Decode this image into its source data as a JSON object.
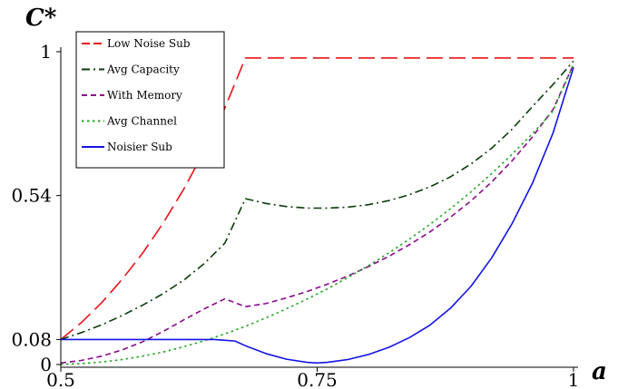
{
  "chart_data": {
    "type": "line",
    "xlabel": "a",
    "ylabel": "C*",
    "xlim": [
      0.5,
      1
    ],
    "ylim": [
      0,
      1
    ],
    "xticks": [
      {
        "value": 0.5,
        "label": "0.5"
      },
      {
        "value": 0.75,
        "label": "0.75"
      },
      {
        "value": 1,
        "label": "1"
      }
    ],
    "yticks": [
      {
        "value": 0,
        "label": "0"
      },
      {
        "value": 0.08,
        "label": "0.08"
      },
      {
        "value": 0.54,
        "label": "0.54"
      },
      {
        "value": 1,
        "label": "1"
      }
    ],
    "legend_position": "top-left",
    "series": [
      {
        "name": "Low Noise Sub",
        "color": "#e8141a",
        "dash": "long-dash",
        "x": [
          0.5,
          0.52,
          0.54,
          0.56,
          0.58,
          0.6,
          0.62,
          0.64,
          0.66,
          0.68,
          0.7,
          0.75,
          0.8,
          0.85,
          0.9,
          0.95,
          1.0
        ],
        "y": [
          0.08,
          0.134,
          0.198,
          0.273,
          0.357,
          0.453,
          0.561,
          0.683,
          0.82,
          0.98,
          0.98,
          0.98,
          0.98,
          0.98,
          0.98,
          0.98,
          0.98
        ]
      },
      {
        "name": "Avg Capacity",
        "color": "#0b3d0b",
        "dash": "dash-dot",
        "x": [
          0.5,
          0.52,
          0.54,
          0.56,
          0.58,
          0.6,
          0.62,
          0.64,
          0.66,
          0.68,
          0.7,
          0.72,
          0.74,
          0.76,
          0.78,
          0.8,
          0.82,
          0.84,
          0.86,
          0.88,
          0.9,
          0.92,
          0.94,
          0.96,
          0.98,
          1.0
        ],
        "y": [
          0.08,
          0.102,
          0.127,
          0.157,
          0.19,
          0.227,
          0.27,
          0.323,
          0.388,
          0.53,
          0.515,
          0.505,
          0.5,
          0.5,
          0.503,
          0.511,
          0.524,
          0.543,
          0.568,
          0.6,
          0.641,
          0.691,
          0.752,
          0.825,
          0.895,
          0.97
        ]
      },
      {
        "name": "With Memory",
        "color": "#8b0a8b",
        "dash": "short-dash",
        "x": [
          0.5,
          0.52,
          0.54,
          0.56,
          0.58,
          0.6,
          0.62,
          0.64,
          0.66,
          0.68,
          0.7,
          0.72,
          0.74,
          0.76,
          0.78,
          0.8,
          0.82,
          0.84,
          0.86,
          0.88,
          0.9,
          0.92,
          0.94,
          0.96,
          0.98,
          1.0
        ],
        "y": [
          0.005,
          0.013,
          0.027,
          0.047,
          0.073,
          0.106,
          0.143,
          0.178,
          0.21,
          0.185,
          0.195,
          0.213,
          0.233,
          0.257,
          0.283,
          0.313,
          0.346,
          0.383,
          0.424,
          0.471,
          0.523,
          0.583,
          0.651,
          0.728,
          0.815,
          0.96
        ]
      },
      {
        "name": "Avg Channel",
        "color": "#22aa22",
        "dash": "dotted",
        "x": [
          0.5,
          0.52,
          0.54,
          0.56,
          0.58,
          0.6,
          0.62,
          0.64,
          0.66,
          0.68,
          0.7,
          0.72,
          0.74,
          0.76,
          0.78,
          0.8,
          0.82,
          0.84,
          0.86,
          0.88,
          0.9,
          0.92,
          0.94,
          0.96,
          0.98,
          1.0
        ],
        "y": [
          0.0,
          0.003,
          0.008,
          0.016,
          0.027,
          0.04,
          0.057,
          0.076,
          0.098,
          0.122,
          0.149,
          0.178,
          0.209,
          0.242,
          0.278,
          0.316,
          0.357,
          0.401,
          0.448,
          0.498,
          0.552,
          0.61,
          0.672,
          0.738,
          0.81,
          0.96
        ]
      },
      {
        "name": "Noisier Sub",
        "color": "#1414e6",
        "dash": "solid",
        "x": [
          0.5,
          0.55,
          0.6,
          0.65,
          0.67,
          0.68,
          0.7,
          0.72,
          0.74,
          0.75,
          0.76,
          0.78,
          0.8,
          0.82,
          0.84,
          0.86,
          0.88,
          0.9,
          0.92,
          0.94,
          0.96,
          0.98,
          1.0
        ],
        "y": [
          0.08,
          0.08,
          0.08,
          0.08,
          0.075,
          0.06,
          0.035,
          0.017,
          0.007,
          0.005,
          0.007,
          0.016,
          0.032,
          0.055,
          0.086,
          0.126,
          0.18,
          0.25,
          0.34,
          0.45,
          0.58,
          0.74,
          0.95
        ]
      }
    ]
  }
}
